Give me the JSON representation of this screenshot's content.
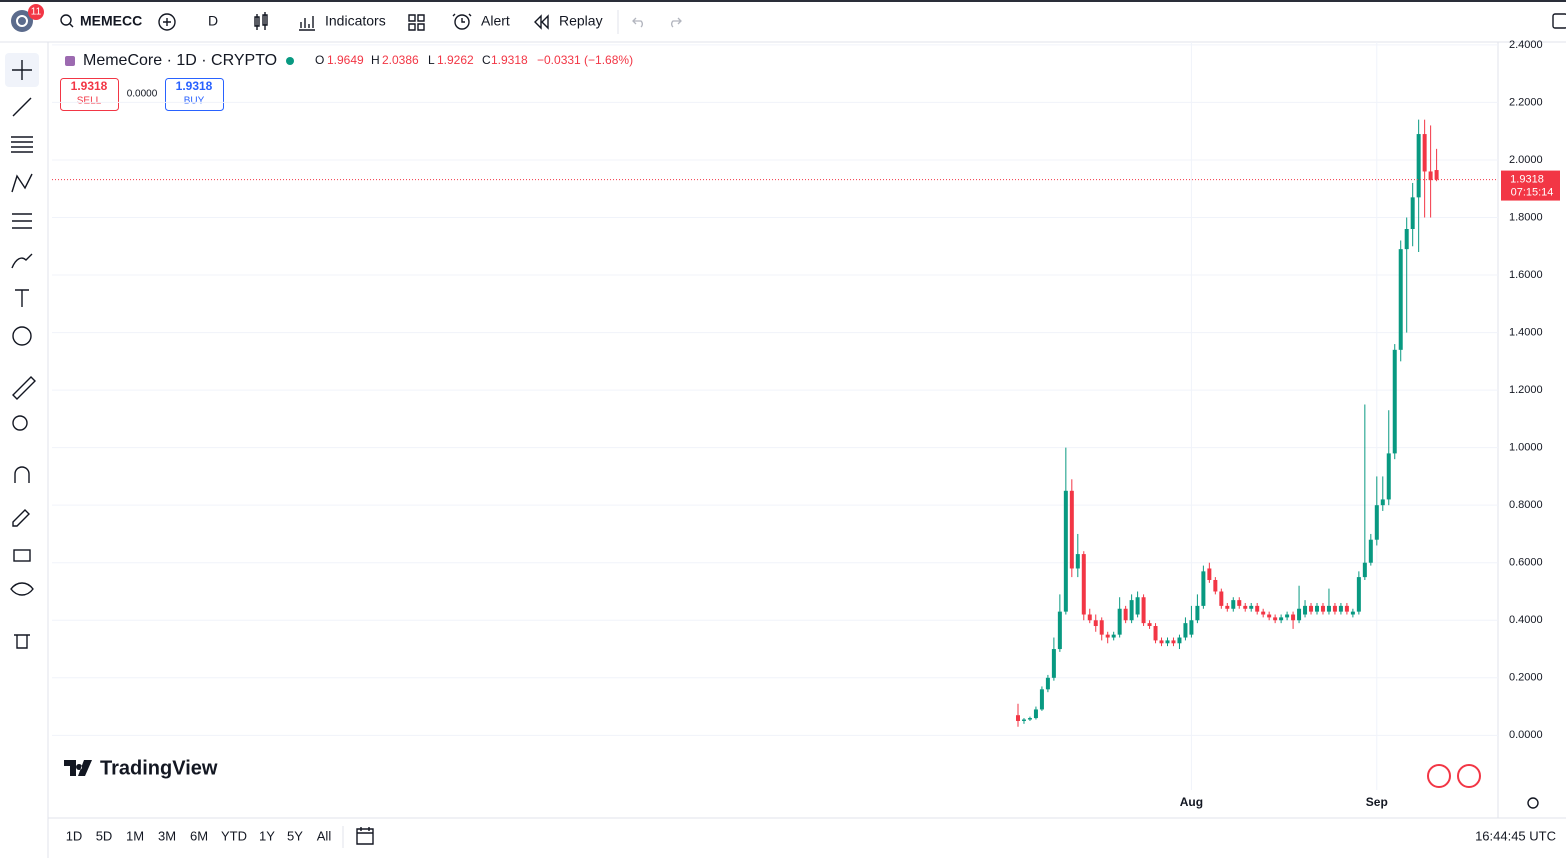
{
  "chart_data": {
    "type": "candlestick",
    "categories": [
      null,
      null,
      null,
      null,
      null,
      null,
      null,
      null,
      null,
      null,
      null,
      null,
      null,
      null,
      null,
      null,
      null,
      null,
      null,
      null,
      null,
      null,
      null,
      null,
      null,
      null,
      null,
      null,
      null,
      "Aug",
      null,
      null,
      null,
      null,
      null,
      null,
      null,
      null,
      null,
      null,
      null,
      null,
      null,
      null,
      null,
      null,
      null,
      null,
      null,
      null,
      null,
      null,
      null,
      null,
      null,
      null,
      null,
      null,
      null,
      null,
      "Sep",
      null,
      null,
      null,
      null,
      null,
      null,
      null,
      null,
      null,
      null
    ],
    "open": [
      0.07,
      0.05,
      0.055,
      0.06,
      0.09,
      0.16,
      0.2,
      0.3,
      0.43,
      0.85,
      0.58,
      0.63,
      0.42,
      0.4,
      0.4,
      0.35,
      0.34,
      0.35,
      0.44,
      0.4,
      0.42,
      0.48,
      0.39,
      0.38,
      0.33,
      0.32,
      0.33,
      0.32,
      0.34,
      0.35,
      0.4,
      0.45,
      0.58,
      0.54,
      0.5,
      0.45,
      0.44,
      0.47,
      0.45,
      0.44,
      0.45,
      0.43,
      0.42,
      0.41,
      0.4,
      0.41,
      0.42,
      0.4,
      0.42,
      0.45,
      0.43,
      0.45,
      0.43,
      0.45,
      0.43,
      0.45,
      0.42,
      0.43,
      0.55,
      0.6,
      0.68,
      0.8,
      0.82,
      0.98,
      1.34,
      1.69,
      1.76,
      1.87,
      2.09,
      1.96,
      1.9649
    ],
    "high": [
      0.11,
      0.06,
      0.065,
      0.1,
      0.17,
      0.21,
      0.34,
      0.49,
      1.0,
      0.89,
      0.7,
      0.64,
      0.44,
      0.42,
      0.41,
      0.36,
      0.36,
      0.48,
      0.45,
      0.49,
      0.5,
      0.49,
      0.4,
      0.39,
      0.34,
      0.34,
      0.34,
      0.35,
      0.41,
      0.45,
      0.49,
      0.59,
      0.6,
      0.55,
      0.51,
      0.46,
      0.48,
      0.48,
      0.46,
      0.46,
      0.46,
      0.44,
      0.43,
      0.42,
      0.42,
      0.43,
      0.43,
      0.52,
      0.47,
      0.46,
      0.46,
      0.46,
      0.51,
      0.46,
      0.46,
      0.46,
      0.44,
      0.57,
      1.15,
      0.7,
      0.9,
      0.9,
      1.13,
      1.36,
      1.72,
      1.8,
      1.92,
      2.14,
      2.14,
      2.12,
      2.0386
    ],
    "low": [
      0.03,
      0.04,
      0.05,
      0.055,
      0.085,
      0.15,
      0.19,
      0.29,
      0.42,
      0.55,
      0.55,
      0.4,
      0.39,
      0.36,
      0.33,
      0.32,
      0.33,
      0.34,
      0.39,
      0.39,
      0.41,
      0.38,
      0.37,
      0.32,
      0.31,
      0.31,
      0.31,
      0.3,
      0.33,
      0.34,
      0.39,
      0.44,
      0.53,
      0.49,
      0.44,
      0.43,
      0.43,
      0.44,
      0.43,
      0.43,
      0.42,
      0.41,
      0.4,
      0.39,
      0.39,
      0.4,
      0.37,
      0.39,
      0.41,
      0.42,
      0.42,
      0.42,
      0.42,
      0.42,
      0.42,
      0.42,
      0.41,
      0.42,
      0.54,
      0.59,
      0.66,
      0.78,
      0.8,
      0.96,
      1.3,
      1.4,
      1.7,
      1.68,
      1.8,
      1.8,
      1.9262
    ],
    "close": [
      0.05,
      0.055,
      0.06,
      0.09,
      0.16,
      0.2,
      0.3,
      0.43,
      0.85,
      0.58,
      0.63,
      0.42,
      0.4,
      0.38,
      0.35,
      0.34,
      0.35,
      0.44,
      0.4,
      0.47,
      0.48,
      0.39,
      0.38,
      0.33,
      0.32,
      0.33,
      0.32,
      0.34,
      0.39,
      0.4,
      0.45,
      0.57,
      0.54,
      0.5,
      0.45,
      0.44,
      0.47,
      0.45,
      0.44,
      0.45,
      0.43,
      0.42,
      0.41,
      0.4,
      0.41,
      0.42,
      0.4,
      0.44,
      0.45,
      0.43,
      0.45,
      0.43,
      0.45,
      0.43,
      0.45,
      0.43,
      0.43,
      0.55,
      0.6,
      0.68,
      0.8,
      0.82,
      0.98,
      1.34,
      1.69,
      1.76,
      1.87,
      2.09,
      1.96,
      1.93,
      1.9318
    ],
    "up_color": "#089981",
    "down_color": "#f23645",
    "ylim": [
      -0.19,
      2.41
    ],
    "yticks": [
      {
        "value": 0,
        "label": "0.0000"
      },
      {
        "value": 0.2,
        "label": "0.2000"
      },
      {
        "value": 0.4,
        "label": "0.4000"
      },
      {
        "value": 0.6,
        "label": "0.6000"
      },
      {
        "value": 0.8,
        "label": "0.8000"
      },
      {
        "value": 1,
        "label": "1.0000"
      },
      {
        "value": 1.2,
        "label": "1.2000"
      },
      {
        "value": 1.4,
        "label": "1.4000"
      },
      {
        "value": 1.6,
        "label": "1.6000"
      },
      {
        "value": 1.8,
        "label": "1.8000"
      },
      {
        "value": 2,
        "label": "2.0000"
      },
      {
        "value": 2.2,
        "label": "2.2000"
      },
      {
        "value": 2.4,
        "label": "2.4000"
      }
    ],
    "grid": true
  },
  "ui": {
    "badge": "11",
    "symbol": "MEMECC",
    "interval": "D",
    "indicators": "Indicators",
    "alert": "Alert",
    "replay": "Replay",
    "legend": {
      "name": "MemeCore · 1D · CRYPTO",
      "o": "O",
      "h": "H",
      "l": "L",
      "c": "C",
      "change": "−0.0331 (−1.68%)"
    },
    "trade": {
      "sell": "SELL",
      "buy": "BUY",
      "spread": "0.0000"
    },
    "countdown": "07:15:14",
    "logo": "TradingView",
    "ranges": [
      "1D",
      "5D",
      "1M",
      "3M",
      "6M",
      "YTD",
      "1Y",
      "5Y",
      "All"
    ],
    "clock": "16:44:45 UTC"
  }
}
